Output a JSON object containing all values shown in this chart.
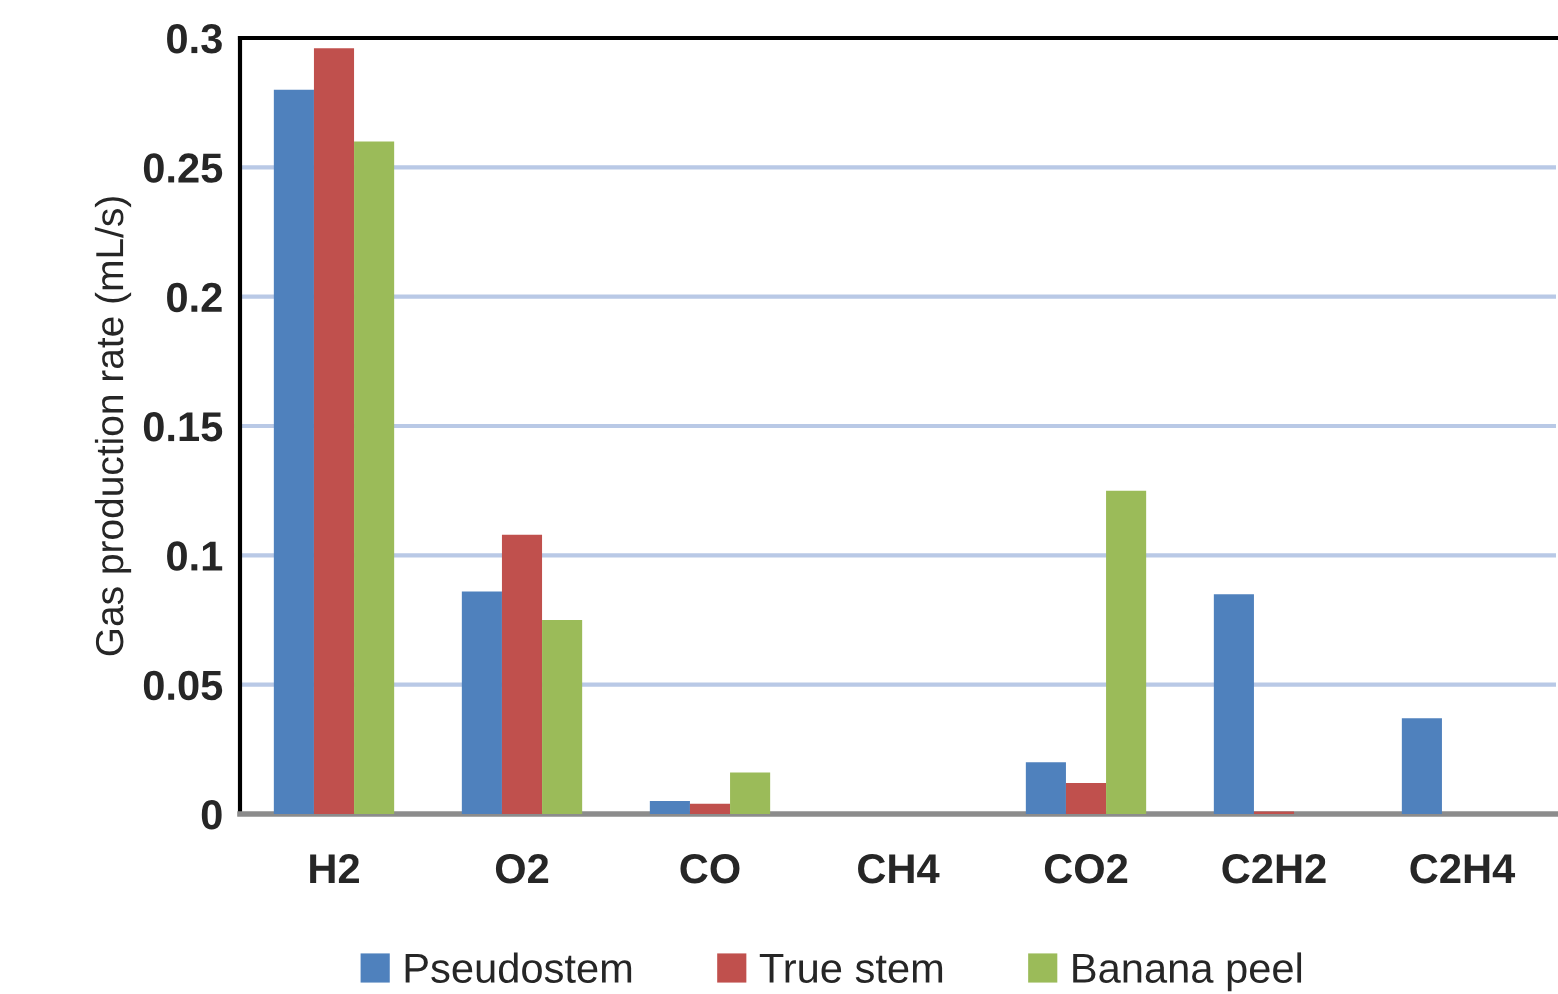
{
  "chart_data": {
    "type": "bar",
    "ylabel": "Gas production rate (mL/s)",
    "categories": [
      "H2",
      "O2",
      "CO",
      "CH4",
      "CO2",
      "C2H2",
      "C2H4"
    ],
    "series": [
      {
        "name": "Pseudostem",
        "color": "#4f81bd",
        "values": [
          0.28,
          0.086,
          0.005,
          null,
          0.02,
          0.085,
          0.037
        ]
      },
      {
        "name": "True stem",
        "color": "#c0504d",
        "values": [
          0.296,
          0.108,
          0.004,
          null,
          0.012,
          0.001,
          null
        ]
      },
      {
        "name": "Banana peel",
        "color": "#9bbb59",
        "values": [
          0.26,
          0.075,
          0.016,
          null,
          0.125,
          null,
          null
        ]
      }
    ],
    "ylim": [
      0,
      0.3
    ],
    "yticks": [
      {
        "value": 0,
        "label": "0"
      },
      0.05,
      {
        "value": 0.1,
        "label": "0.1"
      },
      0.15,
      {
        "value": 0.2,
        "label": "0.2"
      },
      0.25,
      {
        "value": 0.3,
        "label": "0.3"
      }
    ],
    "grid": "y",
    "legend": "bottom"
  }
}
